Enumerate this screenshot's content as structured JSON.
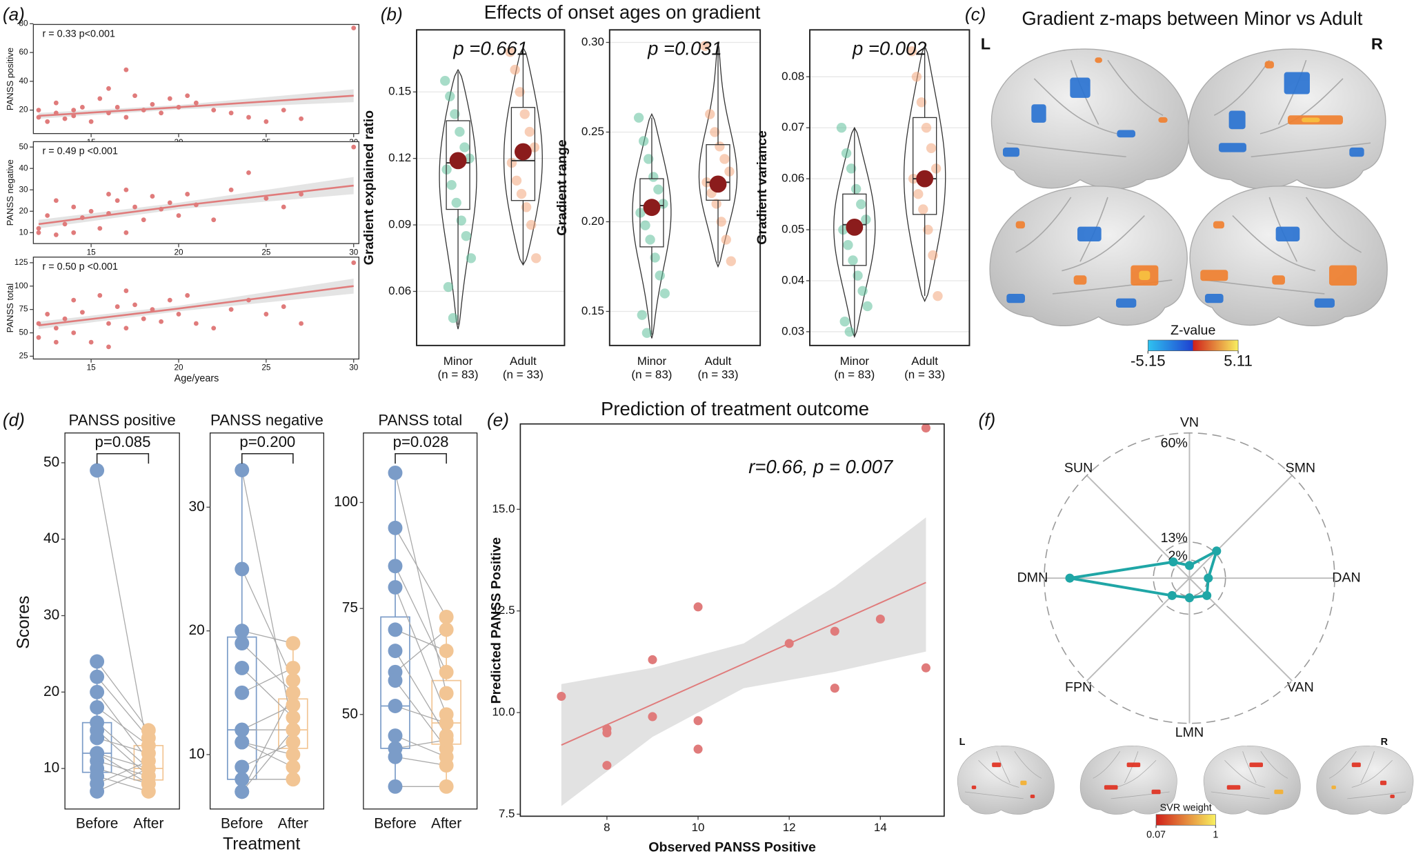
{
  "chart_data": [
    {
      "type": "scatter_fit",
      "panel_label": "(a)",
      "xlabel": "Age/years",
      "color": "#e07b7b",
      "xlim": [
        11.7,
        30.3
      ],
      "xticks": [
        15,
        20,
        25,
        30
      ],
      "x": [
        12,
        12,
        12.5,
        13,
        13,
        13.5,
        14,
        14,
        14.5,
        15,
        15.5,
        16,
        16,
        16.5,
        17,
        17,
        17.5,
        18,
        18.5,
        19,
        19.5,
        20,
        20.5,
        21,
        22,
        23,
        24,
        25,
        26,
        27,
        30
      ],
      "subplots": [
        {
          "ylabel": "PANSS positive",
          "annotation": "r = 0.33 p<0.001",
          "ylim": [
            3.7,
            79.5
          ],
          "yticks": [
            20,
            40,
            60,
            80
          ],
          "values": [
            15,
            20,
            12,
            18,
            25,
            14,
            20,
            16,
            22,
            12,
            28,
            18,
            35,
            22,
            48,
            15,
            30,
            20,
            24,
            18,
            28,
            22,
            30,
            25,
            20,
            18,
            15,
            12,
            20,
            14,
            77
          ],
          "fit_x": [
            12,
            20,
            30
          ],
          "fit_y": [
            16,
            22,
            30
          ],
          "fit_lower": [
            14,
            20.5,
            25.5
          ],
          "fit_upper": [
            18,
            23.5,
            34.5
          ]
        },
        {
          "ylabel": "PANSS negative",
          "annotation": "r = 0.49 p <0.001",
          "ylim": [
            4.9,
            52.5
          ],
          "yticks": [
            10,
            20,
            30,
            40,
            50
          ],
          "values": [
            12,
            10,
            18,
            25,
            9,
            14,
            22,
            10,
            17,
            20,
            12,
            28,
            19,
            25,
            10,
            30,
            22,
            16,
            27,
            21,
            24,
            18,
            28,
            23,
            16,
            30,
            38,
            26,
            22,
            28,
            50
          ],
          "fit_x": [
            12,
            20,
            30
          ],
          "fit_y": [
            14,
            22.5,
            32
          ],
          "fit_lower": [
            12,
            21,
            28
          ],
          "fit_upper": [
            16,
            24,
            36
          ]
        },
        {
          "ylabel": "PANSS total",
          "annotation": "r = 0.50 p <0.001",
          "ylim": [
            22,
            131
          ],
          "yticks": [
            25,
            50,
            75,
            100,
            125
          ],
          "values": [
            60,
            45,
            70,
            55,
            40,
            65,
            85,
            50,
            72,
            40,
            90,
            60,
            35,
            78,
            95,
            55,
            80,
            65,
            75,
            62,
            85,
            70,
            90,
            60,
            55,
            75,
            85,
            70,
            78,
            60,
            125
          ],
          "fit_x": [
            12,
            20,
            30
          ],
          "fit_y": [
            58,
            76,
            100
          ],
          "fit_lower": [
            54,
            73,
            92
          ],
          "fit_upper": [
            62,
            79,
            108
          ]
        }
      ]
    },
    {
      "type": "violin",
      "panel_label": "(b)",
      "title": "Effects of onset ages on gradient",
      "categories": [
        "Minor",
        "Adult"
      ],
      "category_notes": [
        "(n = 83)",
        "(n = 33)"
      ],
      "colors": [
        "#5fbf9a",
        "#f3a57c"
      ],
      "mean_color": "#8b1c1c",
      "subplots": [
        {
          "ylabel": "Gradient explained ratio",
          "p_label": "p =0.661",
          "ylim": [
            0.0356,
            0.178
          ],
          "yticks": [
            0.06,
            0.09,
            0.12,
            0.15
          ],
          "groups": [
            {
              "min": 0.043,
              "max": 0.16,
              "low": 0.045,
              "q1": 0.097,
              "median": 0.118,
              "q3": 0.137,
              "high": 0.159,
              "mean": 0.119,
              "points": [
                0.155,
                0.148,
                0.14,
                0.132,
                0.125,
                0.12,
                0.115,
                0.108,
                0.1,
                0.092,
                0.085,
                0.075,
                0.062,
                0.048
              ]
            },
            {
              "min": 0.072,
              "max": 0.17,
              "low": 0.072,
              "q1": 0.101,
              "median": 0.119,
              "q3": 0.143,
              "high": 0.17,
              "mean": 0.123,
              "points": [
                0.168,
                0.16,
                0.15,
                0.14,
                0.132,
                0.125,
                0.118,
                0.11,
                0.104,
                0.098,
                0.09,
                0.075
              ]
            }
          ]
        },
        {
          "ylabel": "Gradient range",
          "p_label": "p =0.031",
          "ylim": [
            0.131,
            0.307
          ],
          "yticks": [
            0.15,
            {
              "value": 0.2,
              "label": "0.20"
            },
            0.25,
            {
              "value": 0.3,
              "label": "0.30"
            }
          ],
          "groups": [
            {
              "min": 0.135,
              "max": 0.26,
              "low": 0.137,
              "q1": 0.186,
              "median": 0.209,
              "q3": 0.224,
              "high": 0.258,
              "mean": 0.208,
              "points": [
                0.258,
                0.245,
                0.235,
                0.225,
                0.218,
                0.21,
                0.205,
                0.198,
                0.19,
                0.18,
                0.17,
                0.16,
                0.148,
                0.138
              ]
            },
            {
              "min": 0.175,
              "max": 0.3,
              "low": 0.177,
              "q1": 0.212,
              "median": 0.222,
              "q3": 0.243,
              "high": 0.3,
              "mean": 0.221,
              "points": [
                0.298,
                0.26,
                0.25,
                0.242,
                0.235,
                0.228,
                0.222,
                0.216,
                0.21,
                0.2,
                0.19,
                0.178
              ]
            }
          ]
        },
        {
          "ylabel": "Gradient variance",
          "p_label": "p =0.002",
          "ylim": [
            0.0273,
            0.0892
          ],
          "yticks": [
            0.03,
            0.04,
            0.05,
            0.06,
            0.07,
            0.08
          ],
          "groups": [
            {
              "min": 0.029,
              "max": 0.07,
              "low": 0.029,
              "q1": 0.043,
              "median": 0.051,
              "q3": 0.057,
              "high": 0.07,
              "mean": 0.0505,
              "points": [
                0.07,
                0.065,
                0.062,
                0.058,
                0.055,
                0.052,
                0.05,
                0.047,
                0.044,
                0.041,
                0.038,
                0.035,
                0.032,
                0.03
              ]
            },
            {
              "min": 0.036,
              "max": 0.086,
              "low": 0.037,
              "q1": 0.053,
              "median": 0.06,
              "q3": 0.072,
              "high": 0.086,
              "mean": 0.06,
              "points": [
                0.085,
                0.08,
                0.075,
                0.07,
                0.066,
                0.062,
                0.06,
                0.057,
                0.054,
                0.05,
                0.045,
                0.037
              ]
            }
          ]
        }
      ]
    },
    {
      "type": "brain_map",
      "panel_label": "(c)",
      "title": "Gradient z-maps between Minor vs Adult",
      "hemispheres": [
        "L",
        "R"
      ],
      "colorbar_label": "Z-value",
      "clim": [
        -5.15,
        5.11
      ],
      "cticks": [
        -5.15,
        5.11
      ]
    },
    {
      "type": "paired",
      "panel_label": "(d)",
      "ylabel": "Scores",
      "xlabel": "Treatment",
      "categories": [
        "Before",
        "After"
      ],
      "colors": [
        "#7b9cc8",
        "#f2c594"
      ],
      "subplots": [
        {
          "title": "PANSS positive",
          "p_label": "p=0.085",
          "ylim": [
            4.7,
            53.9
          ],
          "yticks": [
            10,
            20,
            30,
            40,
            50
          ],
          "before": [
            49,
            24,
            22,
            20,
            18,
            16,
            15,
            14,
            12,
            12,
            11,
            10,
            9,
            8,
            7
          ],
          "after": [
            12,
            15,
            14,
            11,
            13,
            10,
            9,
            12,
            10,
            8,
            9,
            8,
            7,
            11,
            10
          ],
          "boxes": [
            {
              "low": 7,
              "q1": 9.5,
              "median": 12,
              "q3": 16,
              "high": 24
            },
            {
              "low": 7,
              "q1": 8.5,
              "median": 10,
              "q3": 13,
              "high": 15
            }
          ]
        },
        {
          "title": "PANSS negative",
          "p_label": "p=0.200",
          "ylim": [
            5.6,
            36
          ],
          "yticks": [
            10,
            20,
            30
          ],
          "before": [
            33,
            25,
            20,
            19,
            17,
            15,
            12,
            12,
            11,
            11,
            9,
            8,
            7,
            7
          ],
          "after": [
            12,
            16,
            19,
            15,
            13,
            17,
            12,
            14,
            10,
            9,
            11,
            8,
            15,
            12
          ],
          "boxes": [
            {
              "low": 7,
              "q1": 8,
              "median": 12,
              "q3": 19.5,
              "high": 33
            },
            {
              "low": 8,
              "q1": 10.5,
              "median": 12,
              "q3": 14.5,
              "high": 19
            }
          ]
        },
        {
          "title": "PANSS total",
          "p_label": "p=0.028",
          "ylim": [
            27.7,
            116.4
          ],
          "yticks": [
            50,
            75,
            100
          ],
          "before": [
            107,
            94,
            85,
            80,
            70,
            65,
            60,
            58,
            52,
            45,
            42,
            40,
            33
          ],
          "after": [
            55,
            73,
            60,
            50,
            65,
            45,
            70,
            42,
            48,
            40,
            44,
            38,
            33
          ],
          "boxes": [
            {
              "low": 33,
              "q1": 42,
              "median": 52,
              "q3": 73,
              "high": 107
            },
            {
              "low": 33,
              "q1": 43,
              "median": 48,
              "q3": 58,
              "high": 73
            }
          ]
        }
      ]
    },
    {
      "type": "scatter",
      "panel_label": "(e)",
      "title": "Prediction of treatment outcome",
      "xlabel": "Observed PANSS Positive",
      "ylabel": "Predicted PANSS Positive",
      "annotation": "r=0.66,  p = 0.007",
      "color": "#e07b7b",
      "xlim": [
        6.1,
        15.4
      ],
      "xticks": [
        8,
        10,
        12,
        14
      ],
      "ylim": [
        7.45,
        17.1
      ],
      "yticks": [
        7.5,
        {
          "value": 10,
          "label": "10.0"
        },
        12.5,
        {
          "value": 15,
          "label": "15.0"
        }
      ],
      "x": [
        7,
        8,
        8,
        8,
        9,
        9,
        10,
        10,
        10,
        12,
        13,
        13,
        14,
        15,
        15
      ],
      "values": [
        10.4,
        9.6,
        9.5,
        8.7,
        11.3,
        9.9,
        12.6,
        9.8,
        9.1,
        11.7,
        12.0,
        10.6,
        12.3,
        17.0,
        11.1
      ],
      "fit_x": [
        7,
        15
      ],
      "fit_y": [
        9.2,
        13.2
      ],
      "band_x": [
        7,
        9,
        11,
        13,
        15
      ],
      "band_lower": [
        7.7,
        9.4,
        10.6,
        11.0,
        11.5
      ],
      "band_upper": [
        10.7,
        11.1,
        11.7,
        13.1,
        14.8
      ]
    },
    {
      "type": "radar",
      "panel_label": "(f)",
      "color": "#1fa6a6",
      "axes": [
        "VN",
        "SMN",
        "DAN",
        "VAN",
        "LMN",
        "FPN",
        "DMN",
        "SUN"
      ],
      "values": [
        1.4,
        14,
        2.5,
        6,
        3,
        6,
        49,
        5
      ],
      "rlim": [
        0,
        60
      ],
      "rticks": [
        {
          "value": 2,
          "label": "2%"
        },
        {
          "value": 13,
          "label": "13%"
        },
        {
          "value": 60,
          "label": "60%"
        }
      ],
      "hemispheres": [
        "L",
        "R"
      ],
      "colorbar_label": "SVR weight",
      "clim": [
        0.07,
        1
      ],
      "cticks": [
        0.07,
        1
      ]
    }
  ]
}
